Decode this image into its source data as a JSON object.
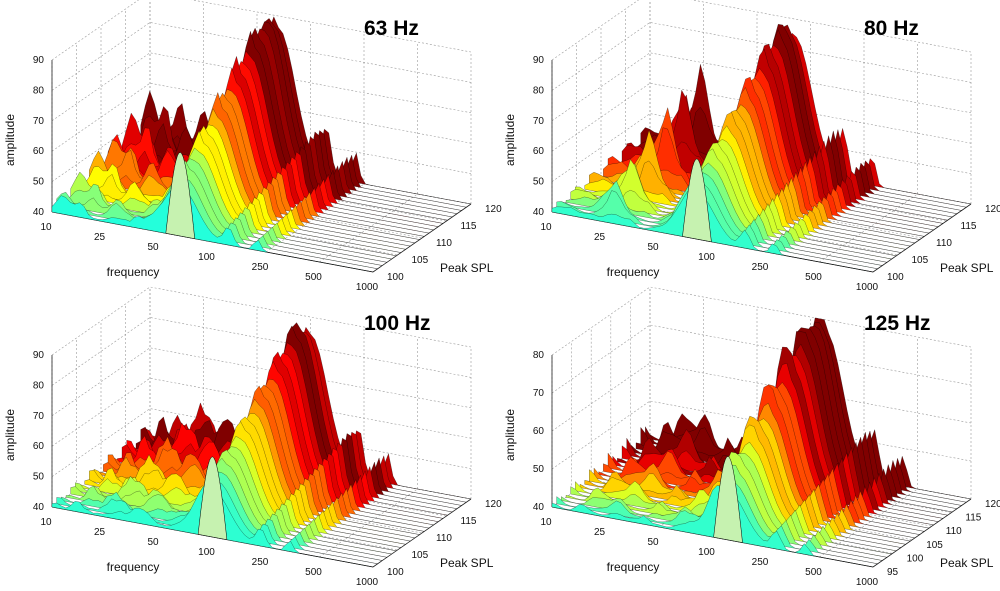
{
  "chart_data": [
    {
      "type": "surface3d",
      "title": "63 Hz",
      "xlabel": "frequency",
      "ylabel": "Peak SPL",
      "zlabel": "amplitude",
      "x_ticks": [
        "10",
        "25",
        "50",
        "100",
        "250",
        "500",
        "1000"
      ],
      "y_ticks": [
        "100",
        "105",
        "110",
        "115",
        "120"
      ],
      "z_ticks": [
        "40",
        "50",
        "60",
        "70",
        "80",
        "90"
      ],
      "zlim": [
        40,
        90
      ],
      "peak_frequency_hz": 63,
      "peak_amplitude": 90
    },
    {
      "type": "surface3d",
      "title": "80 Hz",
      "xlabel": "frequency",
      "ylabel": "Peak SPL",
      "zlabel": "amplitude",
      "x_ticks": [
        "10",
        "25",
        "50",
        "100",
        "250",
        "500",
        "1000"
      ],
      "y_ticks": [
        "100",
        "105",
        "110",
        "115",
        "120"
      ],
      "z_ticks": [
        "40",
        "50",
        "60",
        "70",
        "80",
        "90"
      ],
      "zlim": [
        40,
        90
      ],
      "peak_frequency_hz": 80,
      "peak_amplitude": 88
    },
    {
      "type": "surface3d",
      "title": "100 Hz",
      "xlabel": "frequency",
      "ylabel": "Peak SPL",
      "zlabel": "amplitude",
      "x_ticks": [
        "10",
        "25",
        "50",
        "100",
        "250",
        "500",
        "1000"
      ],
      "y_ticks": [
        "100",
        "105",
        "110",
        "115",
        "120"
      ],
      "z_ticks": [
        "40",
        "50",
        "60",
        "70",
        "80",
        "90"
      ],
      "zlim": [
        40,
        90
      ],
      "peak_frequency_hz": 100,
      "peak_amplitude": 88
    },
    {
      "type": "surface3d",
      "title": "125 Hz",
      "xlabel": "frequency",
      "ylabel": "Peak SPL",
      "zlabel": "amplitude",
      "x_ticks": [
        "10",
        "25",
        "50",
        "100",
        "250",
        "500",
        "1000"
      ],
      "y_ticks": [
        "95",
        "100",
        "105",
        "110",
        "115",
        "120"
      ],
      "z_ticks": [
        "40",
        "50",
        "60",
        "70",
        "80"
      ],
      "zlim": [
        40,
        80
      ],
      "peak_frequency_hz": 125,
      "peak_amplitude": 80
    }
  ]
}
